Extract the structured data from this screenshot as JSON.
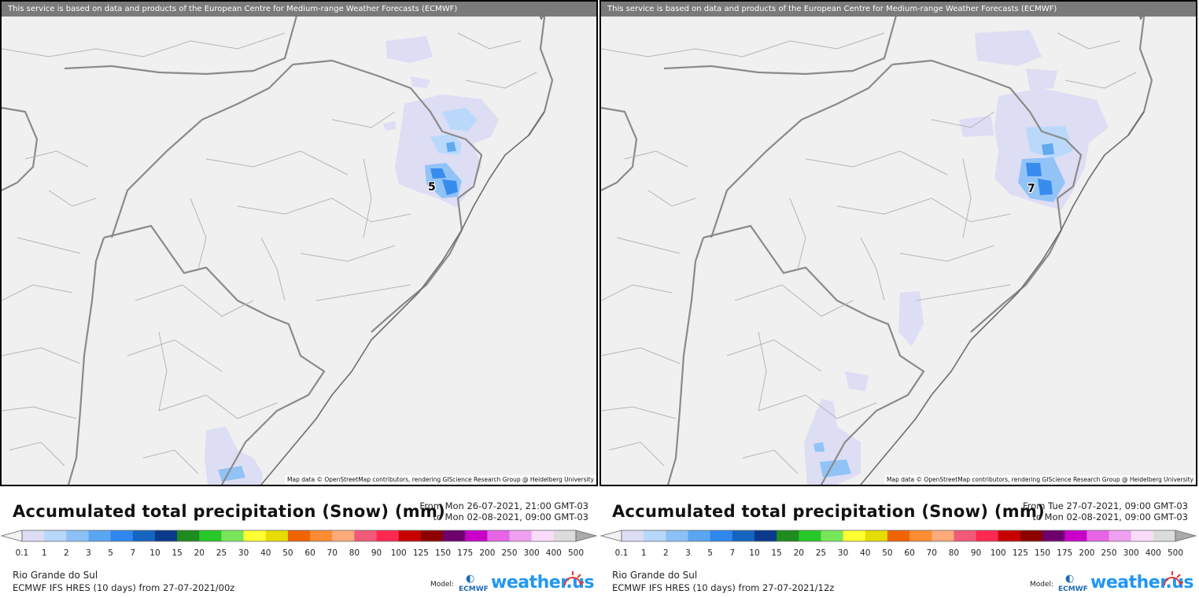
{
  "panels": [
    {
      "banner": "This service is based on data and products of the European Centre for Medium-range Weather Forecasts (ECMWF)",
      "attribution": "Map data © OpenStreetMap contributors, rendering GIScience Research Group @ Heidelberg University",
      "peak_value": "5",
      "title": "Accumulated total precipitation (Snow) (mm)",
      "from": "From Mon 26-07-2021, 21:00 GMT-03",
      "to": "to Mon 02-08-2021, 09:00 GMT-03",
      "region": "Rio Grande do Sul",
      "run": "ECMWF IFS HRES (10 days) from 27-07-2021/00z",
      "model_label": "Model:",
      "ecmwf_logo": "ECMWF",
      "brand": "weather.us"
    },
    {
      "banner": "This service is based on data and products of the European Centre for Medium-range Weather Forecasts (ECMWF)",
      "attribution": "Map data © OpenStreetMap contributors, rendering GIScience Research Group @ Heidelberg University",
      "peak_value": "7",
      "title": "Accumulated total precipitation (Snow) (mm)",
      "from": "From Tue 27-07-2021, 09:00 GMT-03",
      "to": "to Mon 02-08-2021, 09:00 GMT-03",
      "region": "Rio Grande do Sul",
      "run": "ECMWF IFS HRES (10 days) from 27-07-2021/12z",
      "model_label": "Model:",
      "ecmwf_logo": "ECMWF",
      "brand": "weather.us"
    }
  ],
  "legend": {
    "ticks": [
      "0.1",
      "1",
      "2",
      "3",
      "5",
      "7",
      "10",
      "15",
      "20",
      "25",
      "30",
      "40",
      "50",
      "60",
      "70",
      "80",
      "90",
      "100",
      "125",
      "150",
      "175",
      "200",
      "250",
      "300",
      "400",
      "500"
    ],
    "colors": [
      "#dcdcf5",
      "#b8d8fb",
      "#8cc1f7",
      "#5aa6f2",
      "#2f87ee",
      "#1565c0",
      "#0b3a8c",
      "#1e8c1e",
      "#28c828",
      "#78e65a",
      "#ffff32",
      "#e6dc00",
      "#f06400",
      "#ff8c32",
      "#ffaa78",
      "#f05a78",
      "#ff2850",
      "#c80000",
      "#8c0000",
      "#6e006e",
      "#c800c8",
      "#e664e6",
      "#f0a0f0",
      "#fadcfa",
      "#dcdcdc"
    ],
    "under_color": "#f2f2f2",
    "over_color": "#aaaaaa"
  }
}
